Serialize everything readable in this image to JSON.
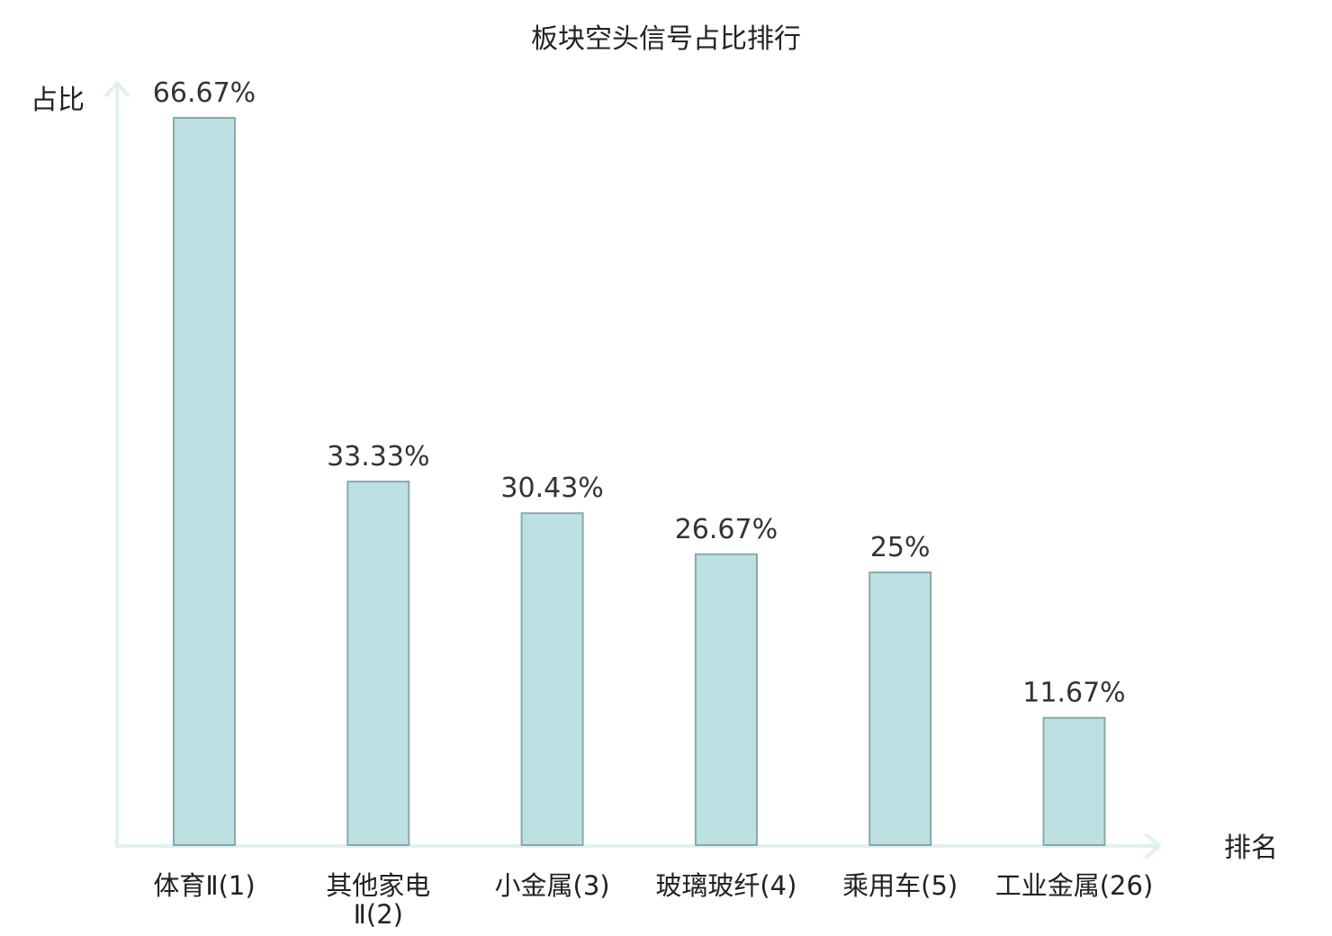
{
  "chart_data": {
    "type": "bar",
    "title": "板块空头信号占比排行",
    "ylabel": "占比",
    "xlabel": "排名",
    "ylim": [
      0,
      70
    ],
    "grid": false,
    "legend": "none",
    "categories": [
      {
        "line1": "体育Ⅱ(1)",
        "line2": ""
      },
      {
        "line1": "其他家电",
        "line2": "Ⅱ(2)"
      },
      {
        "line1": "小金属(3)",
        "line2": ""
      },
      {
        "line1": "玻璃玻纤(4)",
        "line2": ""
      },
      {
        "line1": "乘用车(5)",
        "line2": ""
      },
      {
        "line1": "工业金属(26)",
        "line2": ""
      }
    ],
    "values": [
      66.67,
      33.33,
      30.43,
      26.67,
      25,
      11.67
    ],
    "value_labels": [
      "66.67%",
      "33.33%",
      "30.43%",
      "26.67%",
      "25%",
      "11.67%"
    ],
    "highlight_index": 5,
    "colors": {
      "bar_fill": "#bde0e2",
      "bar_stroke": "#8aa8aa",
      "axis": "#e0f2ef",
      "text": "#222222",
      "value_text": "#333333",
      "highlight": "#dd1111"
    }
  }
}
